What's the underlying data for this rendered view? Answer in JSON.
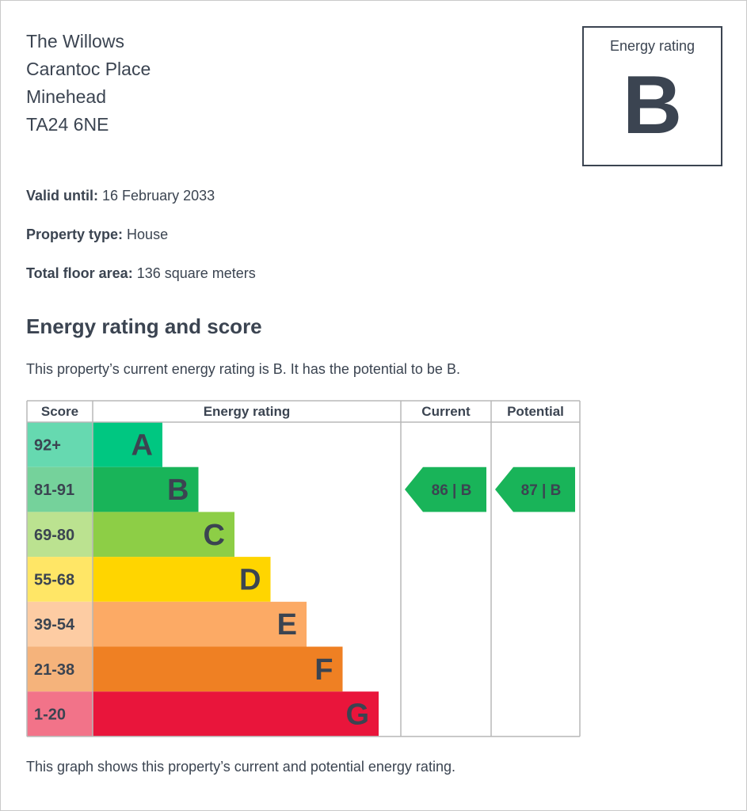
{
  "address": {
    "line1": "The Willows",
    "line2": "Carantoc Place",
    "line3": "Minehead",
    "postcode": "TA24 6NE"
  },
  "rating_box": {
    "label": "Energy rating",
    "letter": "B"
  },
  "facts": {
    "valid_until_label": "Valid until:",
    "valid_until_value": "16 February 2033",
    "property_type_label": "Property type:",
    "property_type_value": "House",
    "floor_area_label": "Total floor area:",
    "floor_area_value": "136 square meters"
  },
  "section_title": "Energy rating and score",
  "summary": "This property’s current energy rating is B. It has the potential to be B.",
  "footer_note": "This graph shows this property’s current and potential energy rating.",
  "chart_data": {
    "type": "table",
    "headers": {
      "score": "Score",
      "rating": "Energy rating",
      "current": "Current",
      "potential": "Potential"
    },
    "bands": [
      {
        "letter": "A",
        "range": "92+",
        "color": "#00c781",
        "score_bg": "#66d9b0"
      },
      {
        "letter": "B",
        "range": "81-91",
        "color": "#19b459",
        "score_bg": "#75d29b"
      },
      {
        "letter": "C",
        "range": "69-80",
        "color": "#8dce46",
        "score_bg": "#bbe290"
      },
      {
        "letter": "D",
        "range": "55-68",
        "color": "#ffd500",
        "score_bg": "#ffe666"
      },
      {
        "letter": "E",
        "range": "39-54",
        "color": "#fcaa65",
        "score_bg": "#fdcca3"
      },
      {
        "letter": "F",
        "range": "21-38",
        "color": "#ef8023",
        "score_bg": "#f5b37b"
      },
      {
        "letter": "G",
        "range": "1-20",
        "color": "#e9153b",
        "score_bg": "#f27389"
      }
    ],
    "current": {
      "score": 86,
      "rating": "B",
      "label": "86 | B"
    },
    "potential": {
      "score": 87,
      "rating": "B",
      "label": "87 | B"
    }
  }
}
